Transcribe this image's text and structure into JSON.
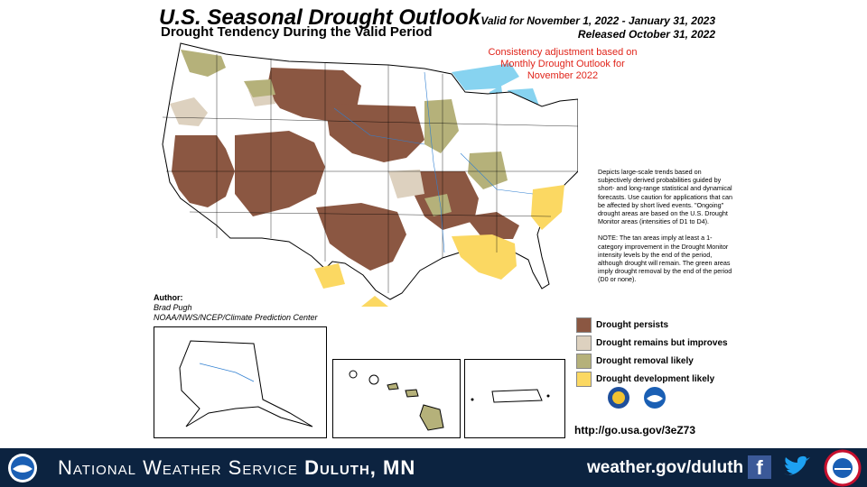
{
  "header": {
    "title": "U.S. Seasonal Drought Outlook",
    "subtitle": "Drought Tendency During the Valid Period",
    "valid_line": "Valid for November 1, 2022 - January 31, 2023",
    "released_line": "Released October 31, 2022"
  },
  "consistency_note": "Consistency adjustment based on Monthly Drought Outlook for November 2022",
  "notes": [
    "Depicts large-scale trends based on subjectively derived probabilities guided by short- and long-range statistical and dynamical forecasts. Use caution for applications that can be affected by short lived events. \"Ongoing\" drought areas are based on the U.S. Drought Monitor areas (intensities of D1 to D4).",
    "NOTE: The tan areas imply at least a 1-category improvement in the Drought Monitor intensity levels by the end of the period, although drought will remain. The green areas imply drought removal by the end of the period (D0 or none)."
  ],
  "author": {
    "label": "Author:",
    "name": "Brad Pugh",
    "org": "NOAA/NWS/NCEP/Climate Prediction Center"
  },
  "legend": [
    {
      "label": "Drought persists",
      "color": "#8b5742"
    },
    {
      "label": "Drought remains but improves",
      "color": "#ddd1bf"
    },
    {
      "label": "Drought removal likely",
      "color": "#b5b17a"
    },
    {
      "label": "Drought development likely",
      "color": "#fbd862"
    }
  ],
  "url": "http://go.usa.gov/3eZ73",
  "footer": {
    "office_prefix": "National Weather Service",
    "office_city": "Duluth, MN",
    "website": "weather.gov/duluth"
  },
  "icons": [
    "noaa-logo-icon",
    "nws-logo-icon",
    "facebook-icon",
    "twitter-icon",
    "skywarn-badge-icon"
  ],
  "colors": {
    "water": "#87d3f0",
    "footer_bg": "#0c2340",
    "note_red": "#e0241a"
  }
}
